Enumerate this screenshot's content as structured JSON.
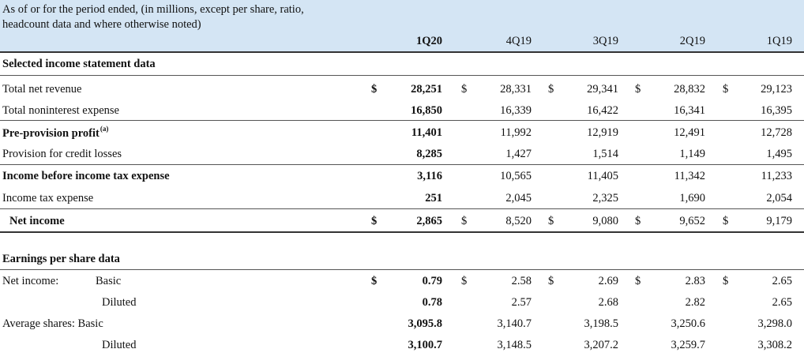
{
  "header": {
    "line1": "As of or for the period ended, (in millions, except per share, ratio,",
    "line2": "headcount data and where otherwise noted)",
    "periods": [
      "1Q20",
      "4Q19",
      "3Q19",
      "2Q19",
      "1Q19"
    ]
  },
  "sections": {
    "income": "Selected income statement data",
    "eps": "Earnings per share data"
  },
  "currency_symbol": "$",
  "rows": {
    "total_net_revenue": {
      "label": "Total net revenue",
      "values": [
        "28,251",
        "28,331",
        "29,341",
        "28,832",
        "29,123"
      ]
    },
    "total_noninterest_expense": {
      "label": "Total noninterest expense",
      "values": [
        "16,850",
        "16,339",
        "16,422",
        "16,341",
        "16,395"
      ]
    },
    "pre_provision_profit": {
      "label": "Pre-provision profit",
      "footnote": "(a)",
      "values": [
        "11,401",
        "11,992",
        "12,919",
        "12,491",
        "12,728"
      ]
    },
    "provision_credit_losses": {
      "label": "Provision for credit losses",
      "values": [
        "8,285",
        "1,427",
        "1,514",
        "1,149",
        "1,495"
      ]
    },
    "income_before_tax": {
      "label": "Income before income tax expense",
      "values": [
        "3,116",
        "10,565",
        "11,405",
        "11,342",
        "11,233"
      ]
    },
    "income_tax_expense": {
      "label": "Income tax expense",
      "values": [
        "251",
        "2,045",
        "2,325",
        "1,690",
        "2,054"
      ]
    },
    "net_income": {
      "label": "Net income",
      "values": [
        "2,865",
        "8,520",
        "9,080",
        "9,652",
        "9,179"
      ]
    },
    "eps_basic": {
      "label": "Net income:",
      "sublabel": "Basic",
      "values": [
        "0.79",
        "2.58",
        "2.69",
        "2.83",
        "2.65"
      ]
    },
    "eps_diluted": {
      "sublabel": "Diluted",
      "values": [
        "0.78",
        "2.57",
        "2.68",
        "2.82",
        "2.65"
      ]
    },
    "avg_shares_basic": {
      "label": "Average shares: Basic",
      "values": [
        "3,095.8",
        "3,140.7",
        "3,198.5",
        "3,250.6",
        "3,298.0"
      ]
    },
    "avg_shares_diluted": {
      "sublabel": "Diluted",
      "values": [
        "3,100.7",
        "3,148.5",
        "3,207.2",
        "3,259.7",
        "3,308.2"
      ]
    }
  }
}
